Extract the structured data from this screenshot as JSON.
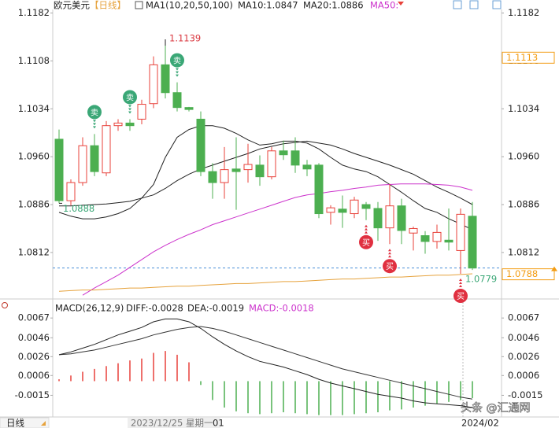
{
  "header": {
    "symbol": "欧元美元",
    "period": "【日线】",
    "ma_title": "MA1(10,20,50,100)",
    "ma_items": [
      "MA10:1.0847",
      "MA20:1.0886",
      "MA50:"
    ]
  },
  "chart_data": [
    {
      "type": "candlestick",
      "open": [
        1.0987,
        1.0892,
        1.092,
        1.0977,
        1.0935,
        1.1008,
        1.1012,
        1.1018,
        1.1042,
        1.1102,
        1.1059,
        1.1036,
        1.1018,
        1.0937,
        1.092,
        1.0941,
        1.094,
        1.0947,
        1.0929,
        1.0969,
        1.0969,
        1.0947,
        1.0947,
        1.0874,
        1.0879,
        1.0872,
        1.0886,
        1.088,
        1.085,
        1.0884,
        1.0842,
        1.0838,
        1.0829,
        1.0831,
        1.0815,
        1.0868
      ],
      "high": [
        1.1002,
        1.0925,
        1.099,
        1.0995,
        1.1015,
        1.1018,
        1.1018,
        1.1048,
        1.1115,
        1.1139,
        1.1075,
        1.1037,
        1.103,
        1.095,
        1.0975,
        1.099,
        1.098,
        1.0962,
        1.0975,
        1.0985,
        1.099,
        1.0955,
        1.095,
        1.0885,
        1.09,
        1.0898,
        1.089,
        1.089,
        1.0918,
        1.0895,
        1.0852,
        1.0845,
        1.0855,
        1.088,
        1.088,
        1.089
      ],
      "low": [
        1.0888,
        1.0885,
        1.0915,
        1.093,
        1.093,
        1.1,
        1.1,
        1.101,
        1.1035,
        1.105,
        1.103,
        1.103,
        1.093,
        1.0895,
        1.0895,
        1.0878,
        1.092,
        1.0915,
        1.0925,
        1.0955,
        1.0935,
        1.093,
        1.0865,
        1.0855,
        1.085,
        1.0865,
        1.0862,
        1.083,
        1.0825,
        1.0825,
        1.0815,
        1.081,
        1.0818,
        1.0815,
        1.0779,
        1.0785
      ],
      "close": [
        1.0892,
        1.092,
        1.0977,
        1.0937,
        1.1008,
        1.1012,
        1.1008,
        1.1041,
        1.1102,
        1.1059,
        1.1036,
        1.1033,
        1.0937,
        1.092,
        1.094,
        1.0937,
        1.0948,
        1.0929,
        1.0969,
        1.0963,
        1.0947,
        1.0941,
        1.0872,
        1.0881,
        1.0874,
        1.0893,
        1.088,
        1.085,
        1.0884,
        1.0846,
        1.0849,
        1.0829,
        1.0843,
        1.0828,
        1.0871,
        1.0788
      ],
      "signals": [
        null,
        null,
        null,
        "卖",
        null,
        null,
        "卖",
        null,
        null,
        null,
        "卖",
        null,
        null,
        null,
        null,
        null,
        null,
        null,
        null,
        null,
        null,
        null,
        null,
        null,
        null,
        null,
        "买",
        null,
        "买",
        null,
        null,
        null,
        null,
        null,
        "买",
        null
      ],
      "up_color": "#e8413a",
      "down_color": "#4caf50",
      "ylim": [
        1.0745,
        1.119
      ],
      "yticks": [
        1.1182,
        1.1108,
        1.1034,
        {
          "value": 1.096,
          "label": "1.0960"
        },
        1.0886,
        1.0812
      ],
      "series": [
        {
          "color": "#222222",
          "values": [
            1.0874,
            1.0868,
            1.0864,
            1.0864,
            1.0867,
            1.0872,
            1.088,
            1.0896,
            1.0917,
            1.0959,
            1.099,
            1.1002,
            1.1008,
            1.1008,
            1.1004,
            1.0996,
            1.0986,
            1.0978,
            1.098,
            1.0984,
            1.0984,
            1.0981,
            1.0972,
            1.0959,
            1.0947,
            1.0941,
            1.0937,
            1.0929,
            1.0917,
            1.0905,
            1.0892,
            1.088,
            1.0874,
            1.0864,
            1.0856,
            1.0847
          ]
        },
        {
          "color": "#222222",
          "values": [
            1.0884,
            1.0884,
            1.0885,
            1.0886,
            1.0887,
            1.0889,
            1.0891,
            1.0896,
            1.0901,
            1.0911,
            1.0923,
            1.0933,
            1.0941,
            1.0947,
            1.0953,
            1.0959,
            1.0965,
            1.0972,
            1.0976,
            1.098,
            1.0982,
            1.0984,
            1.0981,
            1.0978,
            1.0972,
            1.0965,
            1.0959,
            1.0953,
            1.0947,
            1.094,
            1.0933,
            1.0923,
            1.0913,
            1.0905,
            1.0896,
            1.0886
          ]
        },
        {
          "color": "#cc33cc",
          "values": [
            null,
            null,
            1.0746,
            1.0757,
            1.0767,
            1.0777,
            1.0789,
            1.0801,
            1.0813,
            1.0823,
            1.0832,
            1.084,
            1.0847,
            1.0855,
            1.0861,
            1.0867,
            1.0873,
            1.0879,
            1.0885,
            1.0891,
            1.0897,
            1.0901,
            1.0903,
            1.0906,
            1.0908,
            1.0911,
            1.0913,
            1.0916,
            1.0917,
            1.0918,
            1.0918,
            1.0918,
            1.0917,
            1.0916,
            1.0913,
            1.0908
          ]
        },
        {
          "color": "#e6a23c",
          "values": [
            1.0752,
            1.0753,
            1.0754,
            1.0754,
            1.0755,
            1.0756,
            1.0757,
            1.0757,
            1.0758,
            1.0759,
            1.076,
            1.076,
            1.0761,
            1.0762,
            1.0763,
            1.0764,
            1.0764,
            1.0765,
            1.0766,
            1.0767,
            1.0767,
            1.0768,
            1.0769,
            1.077,
            1.0771,
            1.0771,
            1.0772,
            1.0773,
            1.0774,
            1.0774,
            1.0775,
            1.0776,
            1.0777,
            1.0777,
            1.0778,
            1.0779
          ]
        }
      ],
      "annotations": {
        "high_label": "1.1139",
        "low_label": "1.0779",
        "start_label": "1.0888"
      },
      "price_tags": [
        {
          "value": 1.1113,
          "color": "#f39c12",
          "line": false
        },
        {
          "value": 1.0788,
          "color": "#f39c12",
          "line": true
        }
      ]
    },
    {
      "type": "macd",
      "title": "MACD(26,12,9)",
      "items": [
        "DIFF:-0.0028",
        "DEA:-0.0019",
        "MACD:-0.0018"
      ],
      "ylim": [
        -0.0038,
        0.0083
      ],
      "yticks": [
        0.0067,
        0.0046,
        0.0026,
        0.0006,
        -0.0015
      ],
      "series": [
        {
          "color": "#222222",
          "values": [
            0.0028,
            0.0031,
            0.0035,
            0.0039,
            0.0044,
            0.0049,
            0.0053,
            0.0057,
            0.0063,
            0.0066,
            0.0066,
            0.0063,
            0.0056,
            0.0047,
            0.0039,
            0.0032,
            0.0026,
            0.0021,
            0.0018,
            0.0015,
            0.0011,
            0.0007,
            0.0002,
            -0.0002,
            -0.0005,
            -0.0008,
            -0.0011,
            -0.0014,
            -0.0016,
            -0.0018,
            -0.0021,
            -0.0023,
            -0.0024,
            -0.0025,
            -0.0026,
            -0.0028
          ]
        },
        {
          "color": "#333333",
          "values": [
            0.0028,
            0.0029,
            0.0031,
            0.0033,
            0.0036,
            0.0039,
            0.0042,
            0.0045,
            0.0049,
            0.0052,
            0.0055,
            0.0057,
            0.0058,
            0.0056,
            0.0053,
            0.0049,
            0.0045,
            0.0041,
            0.0037,
            0.0033,
            0.0029,
            0.0025,
            0.0021,
            0.0017,
            0.0013,
            0.001,
            0.0007,
            0.0004,
            0.0001,
            -0.0002,
            -0.0005,
            -0.0008,
            -0.0011,
            -0.0014,
            -0.0017,
            -0.0019
          ]
        }
      ],
      "histogram": {
        "up_color": "#e8413a",
        "down_color": "#4caf50",
        "values": [
          0.0002,
          0.0006,
          0.001,
          0.0013,
          0.0016,
          0.0019,
          0.0022,
          0.0024,
          0.003,
          0.0032,
          0.0028,
          0.002,
          -0.0004,
          -0.002,
          -0.0028,
          -0.0032,
          -0.0034,
          -0.0035,
          -0.0034,
          -0.0033,
          -0.0034,
          -0.0035,
          -0.0036,
          -0.0036,
          -0.0036,
          -0.0035,
          -0.0034,
          -0.0033,
          -0.0031,
          -0.003,
          -0.0028,
          -0.0026,
          -0.0024,
          -0.0022,
          -0.002,
          -0.0018
        ]
      }
    }
  ],
  "x_labels": [
    "2023/12/25 星期一",
    "01",
    "2024/02"
  ],
  "footer": {
    "period_button": "日线",
    "watermark": "头条 @汇通网"
  }
}
